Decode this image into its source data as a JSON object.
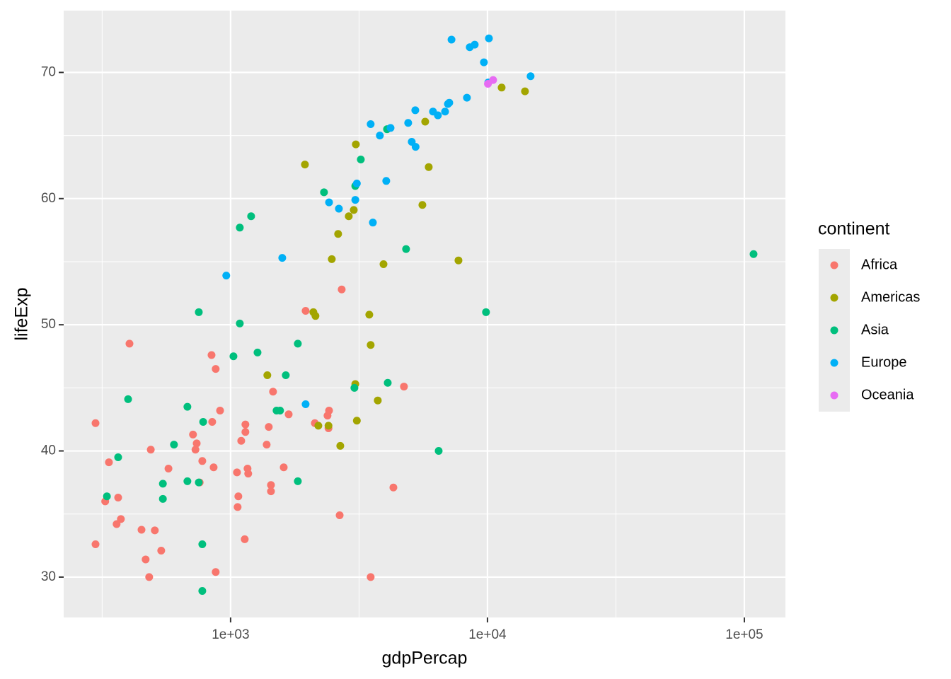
{
  "chart_data": {
    "type": "scatter",
    "xlabel": "gdpPercap",
    "ylabel": "lifeExp",
    "legend_title": "continent",
    "legend": "right",
    "xscale": "log",
    "grid": true,
    "xlim": [
      224,
      144500
    ],
    "ylim": [
      26.8,
      74.9
    ],
    "xticks": [
      {
        "value": 1000,
        "label": "1e+03"
      },
      {
        "value": 10000,
        "label": "1e+04"
      },
      {
        "value": 100000,
        "label": "1e+05"
      }
    ],
    "yticks": [
      30,
      40,
      50,
      60,
      70
    ],
    "series": [
      {
        "name": "Africa",
        "color": "#F8766D",
        "x": [
          298,
          298,
          325,
          336,
          365,
          360,
          374,
          404,
          450,
          467,
          482,
          489,
          507,
          537,
          573,
          714,
          738,
          730,
          758,
          776,
          843,
          875,
          848,
          859,
          875,
          910,
          1059,
          1072,
          1065,
          1100,
          1135,
          1142,
          1142,
          1164,
          1171,
          1382,
          1408,
          1436,
          1436,
          1463,
          1610,
          1683,
          1959,
          2128,
          2384,
          2417,
          2405,
          2707,
          2658,
          3510,
          4303,
          4730
        ],
        "values": [
          42.2,
          32.6,
          36.0,
          39.1,
          36.3,
          34.2,
          34.6,
          48.5,
          33.75,
          31.4,
          30.0,
          40.1,
          33.7,
          32.1,
          38.6,
          41.3,
          40.6,
          40.1,
          37.5,
          39.2,
          47.6,
          46.5,
          42.3,
          38.7,
          30.4,
          43.2,
          38.3,
          36.4,
          35.55,
          40.8,
          33.0,
          42.1,
          41.5,
          38.6,
          38.2,
          40.5,
          41.9,
          37.3,
          36.8,
          44.7,
          38.7,
          42.9,
          51.1,
          42.2,
          42.8,
          43.2,
          41.8,
          52.8,
          34.9,
          30.0,
          37.1,
          45.1
        ]
      },
      {
        "name": "Americas",
        "color": "#A3A500",
        "x": [
          1947,
          2100,
          2140,
          1390,
          2196,
          2405,
          2673,
          2477,
          2622,
          2884,
          3016,
          3073,
          3058,
          3101,
          3467,
          3510,
          3741,
          3938,
          5580,
          5722,
          5906,
          7711,
          11354,
          13996
        ],
        "values": [
          62.7,
          51.0,
          50.7,
          46.0,
          42.0,
          42.0,
          40.4,
          55.2,
          57.2,
          58.6,
          59.1,
          64.3,
          45.3,
          42.4,
          50.8,
          48.4,
          44.0,
          54.8,
          59.5,
          66.1,
          62.5,
          55.1,
          68.8,
          68.5
        ]
      },
      {
        "name": "Asia",
        "color": "#00BF7D",
        "x": [
          330,
          365,
          399,
          545,
          545,
          602,
          679,
          679,
          752,
          752,
          776,
          782,
          776,
          1026,
          1086,
          1086,
          1202,
          1273,
          1510,
          1558,
          1640,
          1827,
          1827,
          2310,
          3034,
          3058,
          3213,
          4064,
          4090,
          4821,
          6457,
          9870,
          108600
        ],
        "values": [
          36.4,
          39.5,
          44.1,
          37.4,
          36.2,
          40.5,
          43.5,
          37.6,
          51.0,
          37.5,
          32.6,
          42.3,
          28.9,
          47.5,
          50.1,
          57.7,
          58.6,
          47.8,
          43.2,
          43.2,
          46.0,
          48.5,
          37.6,
          60.5,
          45.0,
          61.0,
          63.1,
          65.5,
          45.4,
          56.0,
          40.0,
          51.0,
          55.6
        ]
      },
      {
        "name": "Europe",
        "color": "#00B0F6",
        "x": [
          962,
          1589,
          1959,
          2417,
          2640,
          3058,
          3101,
          3510,
          3580,
          3811,
          4036,
          4195,
          4913,
          5072,
          5236,
          5251,
          6137,
          6412,
          6838,
          7015,
          7100,
          7244,
          8318,
          8531,
          8920,
          9685,
          10070,
          10130,
          14720
        ],
        "values": [
          53.9,
          55.3,
          43.7,
          59.7,
          59.2,
          59.9,
          61.2,
          65.9,
          58.1,
          65.0,
          61.4,
          65.6,
          66.0,
          64.5,
          67.0,
          64.1,
          66.9,
          66.6,
          66.9,
          67.5,
          67.6,
          72.6,
          68.0,
          72.0,
          72.2,
          70.8,
          69.2,
          72.7,
          69.7
        ]
      },
      {
        "name": "Oceania",
        "color": "#E76BF3",
        "x": [
          10040,
          10520
        ],
        "values": [
          69.1,
          69.4
        ]
      }
    ]
  }
}
